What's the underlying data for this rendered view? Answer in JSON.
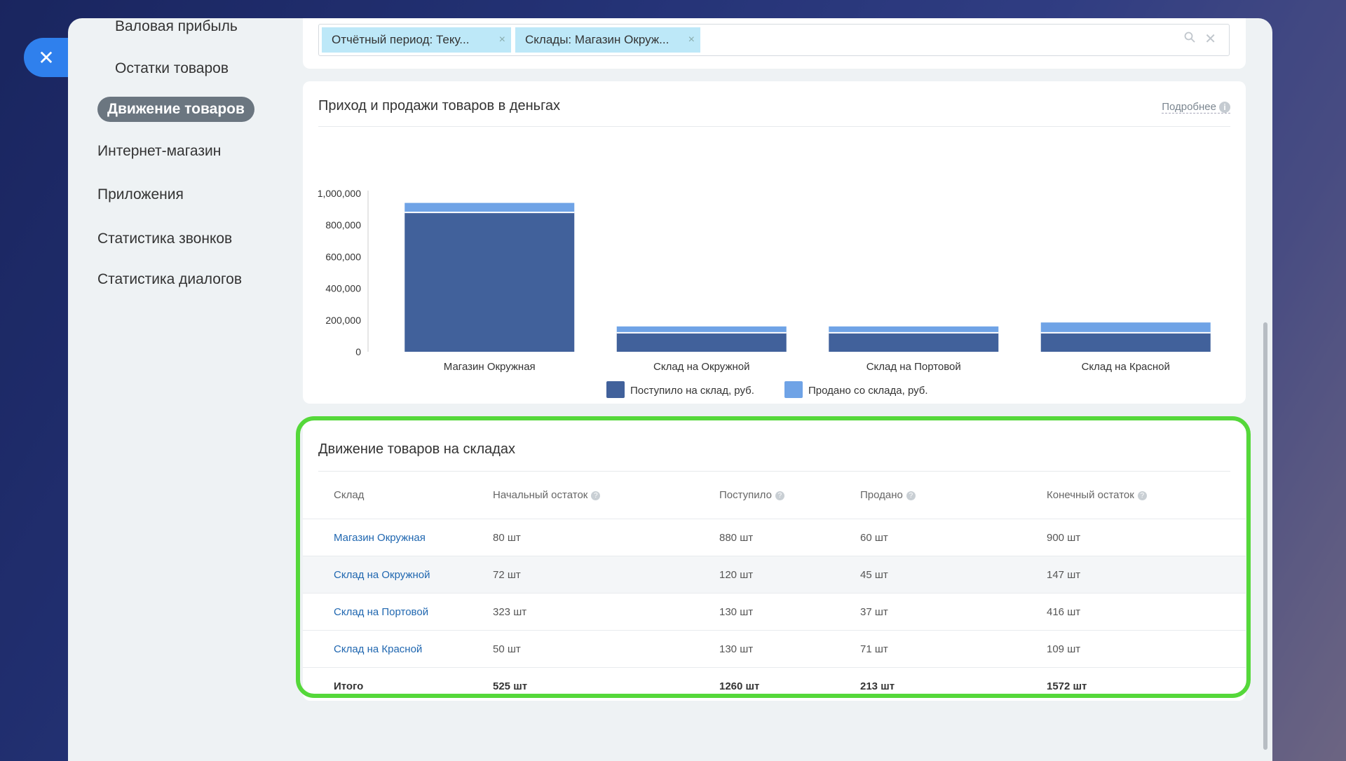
{
  "menu": {
    "items": [
      {
        "label": "Валовая прибыль"
      },
      {
        "label": "Остатки товаров"
      },
      {
        "label": "Движение товаров"
      },
      {
        "label": "Интернет-магазин"
      },
      {
        "label": "Приложения"
      },
      {
        "label": "Статистика звонков"
      },
      {
        "label": "Статистика диалогов"
      }
    ]
  },
  "filter": {
    "chips": [
      "Отчётный период: Теку...",
      "Склады: Магазин Окруж..."
    ],
    "chip_close": "×",
    "clear": "✕"
  },
  "chart_card": {
    "title": "Приход и продажи товаров в деньгах",
    "more": "Подробнее"
  },
  "chart_data": {
    "type": "bar",
    "stacked": true,
    "categories": [
      "Магазин Окружная",
      "Склад на Окружной",
      "Склад на Портовой",
      "Склад на Красной"
    ],
    "series": [
      {
        "name": "Поступило на склад, руб.",
        "color": "#41619b",
        "values": [
          880000,
          120000,
          120000,
          120000
        ]
      },
      {
        "name": "Продано со склада, руб.",
        "color": "#6fa3e6",
        "values": [
          60000,
          40000,
          40000,
          65000
        ]
      }
    ],
    "yticks": [
      "0",
      "200,000",
      "400,000",
      "600,000",
      "800,000",
      "1,000,000"
    ],
    "ylim": [
      0,
      1000000
    ],
    "legend_position": "bottom"
  },
  "table": {
    "title": "Движение товаров на складах",
    "columns": [
      "Склад",
      "Начальный остаток",
      "Поступило",
      "Продано",
      "Конечный остаток"
    ],
    "rows": [
      [
        "Магазин Окружная",
        "80 шт",
        "880 шт",
        "60 шт",
        "900 шт"
      ],
      [
        "Склад на Окружной",
        "72 шт",
        "120 шт",
        "45 шт",
        "147 шт"
      ],
      [
        "Склад на Портовой",
        "323 шт",
        "130 шт",
        "37 шт",
        "416 шт"
      ],
      [
        "Склад на Красной",
        "50 шт",
        "130 шт",
        "71 шт",
        "109 шт"
      ]
    ],
    "total": [
      "Итого",
      "525 шт",
      "1260 шт",
      "213 шт",
      "1572 шт"
    ]
  }
}
